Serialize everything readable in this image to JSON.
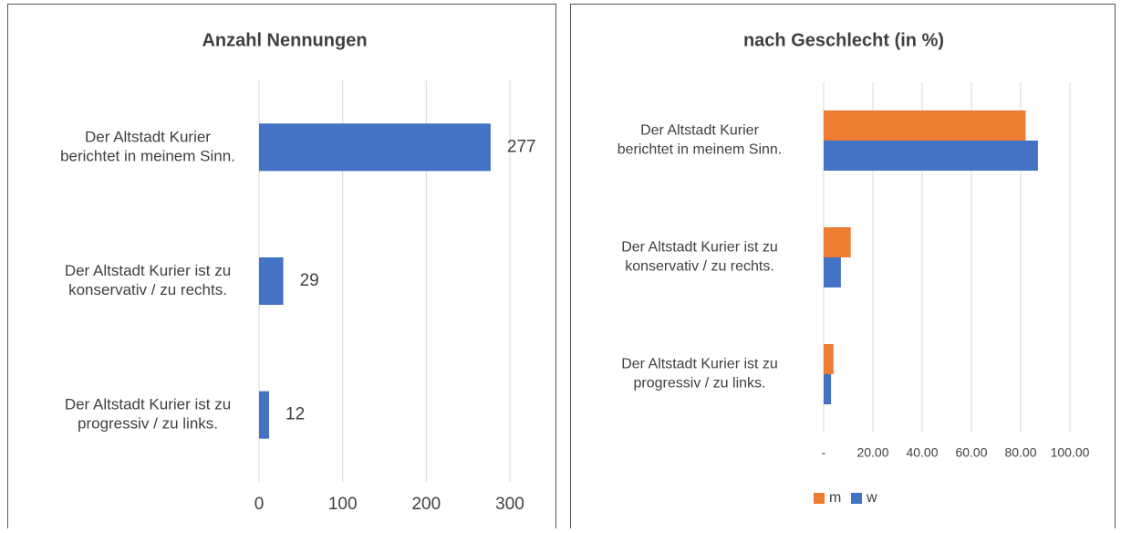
{
  "chart_data": [
    {
      "type": "bar",
      "orientation": "horizontal",
      "title": "Anzahl Nennungen",
      "categories": [
        [
          "Der Altstadt Kurier",
          "berichtet in meinem Sinn."
        ],
        [
          "Der Altstadt Kurier ist zu",
          "konservativ / zu rechts."
        ],
        [
          "Der Altstadt Kurier ist zu",
          "progressiv / zu links."
        ]
      ],
      "values": [
        277,
        29,
        12
      ],
      "color": "#4472c4",
      "data_labels": true,
      "xlim": [
        0,
        300
      ],
      "xticks": [
        0,
        100,
        200,
        300
      ],
      "grid": true
    },
    {
      "type": "bar",
      "orientation": "horizontal",
      "title": "nach Geschlecht (in %)",
      "categories": [
        [
          "Der Altstadt Kurier",
          "berichtet in meinem Sinn."
        ],
        [
          "Der Altstadt Kurier ist zu",
          "konservativ / zu rechts."
        ],
        [
          "Der Altstadt Kurier ist zu",
          "progressiv / zu links."
        ]
      ],
      "series": [
        {
          "name": "m",
          "color": "#ed7d31",
          "values": [
            82,
            11,
            4
          ]
        },
        {
          "name": "w",
          "color": "#4472c4",
          "values": [
            87,
            7,
            3
          ]
        }
      ],
      "xlim": [
        0,
        100
      ],
      "xticks": [
        {
          "value": 0,
          "label": "-"
        },
        {
          "value": 20,
          "label": "20.00"
        },
        {
          "value": 40,
          "label": "40.00"
        },
        {
          "value": 60,
          "label": "60.00"
        },
        {
          "value": 80,
          "label": "80.00"
        },
        {
          "value": 100,
          "label": "100.00"
        }
      ],
      "grid": true,
      "legend": "bottom"
    }
  ]
}
